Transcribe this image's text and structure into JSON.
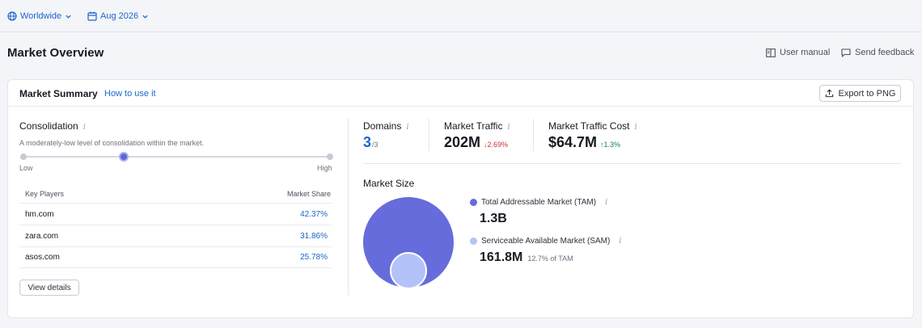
{
  "filters": {
    "region": "Worldwide",
    "date": "Aug 2026"
  },
  "header": {
    "title": "Market Overview",
    "user_manual": "User manual",
    "send_feedback": "Send feedback"
  },
  "card": {
    "title": "Market Summary",
    "how_to": "How to use it",
    "export": "Export to PNG"
  },
  "consolidation": {
    "label": "Consolidation",
    "description": "A moderately-low level of consolidation within the market.",
    "low": "Low",
    "high": "High",
    "level": 0.33
  },
  "key_players": {
    "col_player": "Key Players",
    "col_share": "Market Share",
    "rows": [
      {
        "domain": "hm.com",
        "share": "42.37%"
      },
      {
        "domain": "zara.com",
        "share": "31.86%"
      },
      {
        "domain": "asos.com",
        "share": "25.78%"
      }
    ],
    "view_details": "View details"
  },
  "metrics": {
    "domains": {
      "label": "Domains",
      "value": "3",
      "sub": "/3"
    },
    "traffic": {
      "label": "Market Traffic",
      "value": "202M",
      "delta": "↓2.69%"
    },
    "cost": {
      "label": "Market Traffic Cost",
      "value": "$64.7M",
      "delta": "↑1.3%"
    }
  },
  "market_size": {
    "label": "Market Size",
    "tam": {
      "label": "Total Addressable Market (TAM)",
      "value": "1.3B",
      "color": "#666cdb"
    },
    "sam": {
      "label": "Serviceable Available Market (SAM)",
      "value": "161.8M",
      "of": "12.7% of TAM",
      "color": "#b4c2fa"
    },
    "sam_ratio": 0.127
  },
  "colors": {
    "accent": "#1b66c9",
    "tam": "#666cdb",
    "sam": "#b4c2fa",
    "negative": "#d02f3b",
    "positive": "#0d8a4c"
  }
}
